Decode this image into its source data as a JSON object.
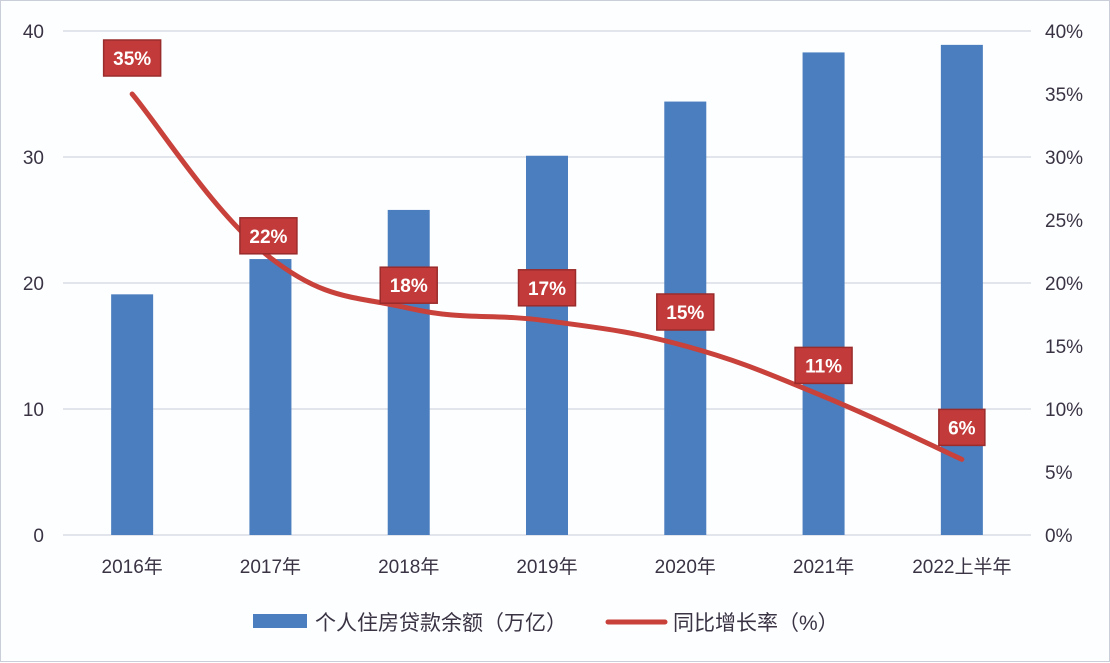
{
  "chart_data": {
    "type": "bar+line",
    "title": "",
    "categories": [
      "2016年",
      "2017年",
      "2018年",
      "2019年",
      "2020年",
      "2021年",
      "2022上半年"
    ],
    "series": [
      {
        "name": "个人住房贷款余额（万亿）",
        "type": "bar",
        "axis": "left",
        "color": "#4a7ebf",
        "values": [
          19.1,
          21.9,
          25.8,
          30.1,
          34.4,
          38.3,
          38.9
        ]
      },
      {
        "name": "同比增长率（%）",
        "type": "line",
        "axis": "right",
        "color": "#c8413b",
        "values": [
          35,
          22,
          18,
          17,
          15,
          11,
          6
        ],
        "data_labels": [
          "35%",
          "22%",
          "18%",
          "17%",
          "15%",
          "11%",
          "6%"
        ]
      }
    ],
    "left_axis": {
      "ticks": [
        "0",
        "10",
        "20",
        "30",
        "40"
      ],
      "range": [
        0,
        40
      ]
    },
    "right_axis": {
      "ticks": [
        "0%",
        "5%",
        "10%",
        "15%",
        "20%",
        "25%",
        "30%",
        "35%",
        "40%"
      ],
      "range": [
        0,
        40
      ]
    },
    "grid": true,
    "legend_position": "bottom"
  },
  "legend": {
    "bar_label": "个人住房贷款余额（万亿）",
    "line_label": "同比增长率（%）"
  },
  "colors": {
    "bar": "#4a7ebf",
    "line": "#c8413b",
    "label_fill": "#c33a3a",
    "label_border": "#9a2c2c",
    "grid": "#d9dde5",
    "text": "#3a3344"
  }
}
